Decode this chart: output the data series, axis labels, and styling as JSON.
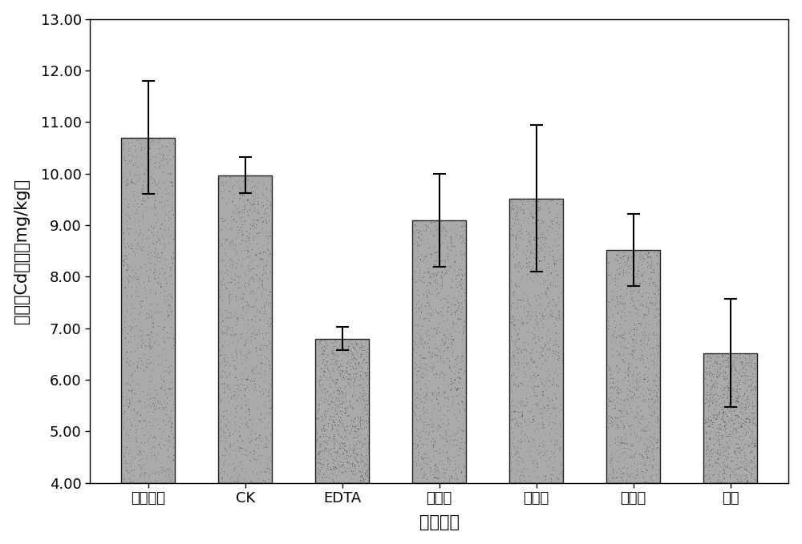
{
  "categories": [
    "原始土壤",
    "CK",
    "EDTA",
    "酒石酸",
    "柠檬酸",
    "苹果酸",
    "草酸"
  ],
  "values": [
    10.7,
    9.97,
    6.8,
    9.1,
    9.52,
    8.52,
    6.52
  ],
  "errors": [
    1.1,
    0.35,
    0.22,
    0.9,
    1.42,
    0.7,
    1.05
  ],
  "bar_color": "#aaaaaa",
  "bar_edgecolor": "#222222",
  "ylabel": "土壤全Cd含量（mg/kg）",
  "xlabel": "处理方式",
  "ylim": [
    4.0,
    13.0
  ],
  "yticks": [
    4.0,
    5.0,
    6.0,
    7.0,
    8.0,
    9.0,
    10.0,
    11.0,
    12.0,
    13.0
  ],
  "ylabel_fontsize": 15,
  "xlabel_fontsize": 15,
  "tick_fontsize": 13,
  "bar_width": 0.55,
  "figsize": [
    10.0,
    6.79
  ],
  "dpi": 100,
  "plot_bgcolor": "#ffffff",
  "fig_bgcolor": "#ffffff"
}
